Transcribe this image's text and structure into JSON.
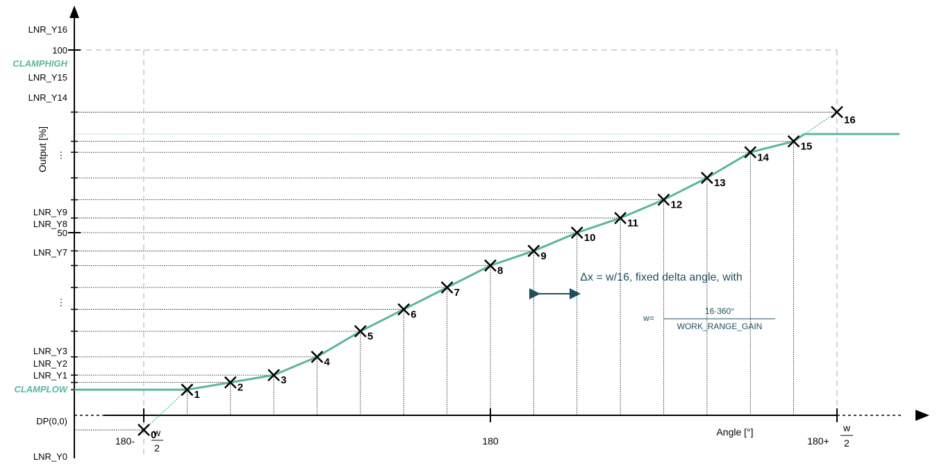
{
  "y_labels": {
    "lnr_y16": "LNR_Y16",
    "hundred": "100",
    "clamphigh": "CLAMPHIGH",
    "lnr_y15": "LNR_Y15",
    "lnr_y14": "LNR_Y14",
    "dots_upper": "⋮",
    "lnr_y9": "LNR_Y9",
    "lnr_y8": "LNR_Y8",
    "fifty": "50",
    "lnr_y7": "LNR_Y7",
    "dots_lower": "⋮",
    "lnr_y3": "LNR_Y3",
    "lnr_y2": "LNR_Y2",
    "lnr_y1": "LNR_Y1",
    "clamplow": "CLAMPLOW",
    "dp": "DP(0,0)",
    "lnr_y0": "LNR_Y0"
  },
  "axis": {
    "y_title": "Output [%]",
    "x_title": "Angle [°]",
    "x_left_prefix": "180-",
    "x_center": "180",
    "x_right_prefix": "180+",
    "frac_num": "w",
    "frac_den": "2"
  },
  "points": [
    {
      "label": "0",
      "x": 0,
      "y": -4
    },
    {
      "label": "1",
      "x": 1,
      "y": 7
    },
    {
      "label": "2",
      "x": 2,
      "y": 9
    },
    {
      "label": "3",
      "x": 3,
      "y": 11
    },
    {
      "label": "4",
      "x": 4,
      "y": 16
    },
    {
      "label": "5",
      "x": 5,
      "y": 23
    },
    {
      "label": "6",
      "x": 6,
      "y": 29
    },
    {
      "label": "7",
      "x": 7,
      "y": 35
    },
    {
      "label": "8",
      "x": 8,
      "y": 41
    },
    {
      "label": "9",
      "x": 9,
      "y": 45
    },
    {
      "label": "10",
      "x": 10,
      "y": 50
    },
    {
      "label": "11",
      "x": 11,
      "y": 54
    },
    {
      "label": "12",
      "x": 12,
      "y": 59
    },
    {
      "label": "13",
      "x": 13,
      "y": 65
    },
    {
      "label": "14",
      "x": 14,
      "y": 72
    },
    {
      "label": "15",
      "x": 15,
      "y": 75
    },
    {
      "label": "16",
      "x": 16,
      "y": 83
    }
  ],
  "clamp_low_value": 7,
  "clamp_high_value": 77,
  "annotation": {
    "delta": "Δx = w/16, fixed delta angle, with",
    "w_eq": "w=",
    "w_num": "16·360°",
    "w_den": "WORK_RANGE_GAIN"
  },
  "colors": {
    "curve": "#5bb5a0",
    "accent_text": "#1f4e5f",
    "dashed_frame": "#a9bfc6"
  }
}
